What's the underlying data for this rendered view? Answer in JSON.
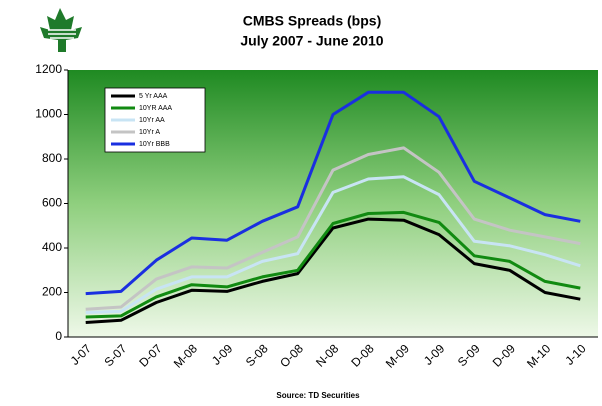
{
  "chart_data": {
    "type": "line",
    "title": "CMBS Spreads (bps)",
    "subtitle": "July 2007 - June 2010",
    "source": "Source: TD Securities",
    "categories": [
      "J-07",
      "S-07",
      "D-07",
      "M-08",
      "J-09",
      "S-08",
      "O-08",
      "N-08",
      "D-08",
      "M-09",
      "J-09",
      "S-09",
      "D-09",
      "M-10",
      "J-10"
    ],
    "series": [
      {
        "name": "5 Yr AAA",
        "color": "#000000",
        "values": [
          65,
          75,
          155,
          210,
          205,
          250,
          285,
          490,
          530,
          525,
          460,
          330,
          300,
          200,
          170
        ]
      },
      {
        "name": "10YR AAA",
        "color": "#118a11",
        "values": [
          90,
          95,
          180,
          235,
          225,
          270,
          300,
          510,
          555,
          560,
          515,
          365,
          340,
          250,
          220
        ]
      },
      {
        "name": "10Yr AA",
        "color": "#c8e4f4",
        "values": [
          110,
          115,
          215,
          270,
          270,
          340,
          375,
          650,
          710,
          720,
          640,
          430,
          410,
          370,
          320
        ]
      },
      {
        "name": "10Yr A",
        "color": "#c4c4c4",
        "values": [
          125,
          135,
          260,
          315,
          310,
          380,
          450,
          750,
          820,
          850,
          740,
          530,
          480,
          450,
          420
        ]
      },
      {
        "name": "10Yr BBB",
        "color": "#1a2fe0",
        "values": [
          195,
          205,
          345,
          445,
          435,
          520,
          585,
          1000,
          1100,
          1100,
          990,
          700,
          625,
          550,
          520
        ]
      }
    ],
    "ylim": [
      0,
      1200
    ],
    "yticks": [
      0,
      200,
      400,
      600,
      800,
      1000,
      1200
    ],
    "legend": "upper left"
  }
}
